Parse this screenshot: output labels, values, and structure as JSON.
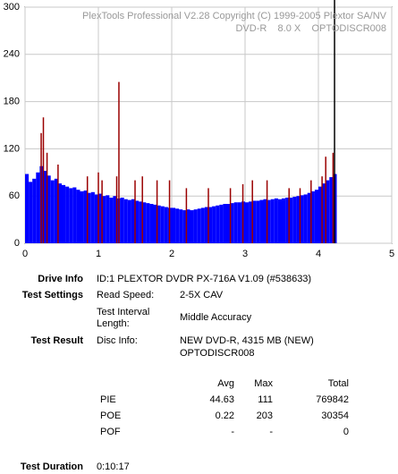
{
  "chart_data": {
    "type": "bar",
    "title": "PlexTools Professional V2.28 Copyright (C) 1999-2005 Plextor SA/NV",
    "subtitle": "DVD-R    8.0 X    OPTODISCR008",
    "x": [
      0,
      0.05,
      0.1,
      0.15,
      0.2,
      0.25,
      0.3,
      0.35,
      0.4,
      0.45,
      0.5,
      0.55,
      0.6,
      0.65,
      0.7,
      0.75,
      0.8,
      0.85,
      0.9,
      0.95,
      1,
      1.05,
      1.1,
      1.15,
      1.2,
      1.25,
      1.3,
      1.35,
      1.4,
      1.45,
      1.5,
      1.55,
      1.6,
      1.65,
      1.7,
      1.75,
      1.8,
      1.85,
      1.9,
      1.95,
      2,
      2.05,
      2.1,
      2.15,
      2.2,
      2.25,
      2.3,
      2.35,
      2.4,
      2.45,
      2.5,
      2.55,
      2.6,
      2.65,
      2.7,
      2.75,
      2.8,
      2.85,
      2.9,
      2.95,
      3,
      3.05,
      3.1,
      3.15,
      3.2,
      3.25,
      3.3,
      3.35,
      3.4,
      3.45,
      3.5,
      3.55,
      3.6,
      3.65,
      3.7,
      3.75,
      3.8,
      3.85,
      3.9,
      3.95,
      4,
      4.05,
      4.1,
      4.15,
      4.2
    ],
    "values": [
      88,
      78,
      82,
      90,
      98,
      92,
      86,
      80,
      82,
      76,
      74,
      72,
      70,
      71,
      68,
      66,
      67,
      64,
      65,
      62,
      63,
      60,
      61,
      58,
      60,
      57,
      58,
      56,
      55,
      56,
      54,
      53,
      52,
      51,
      50,
      49,
      48,
      47,
      46,
      45,
      45,
      44,
      43,
      42,
      43,
      42,
      43,
      44,
      45,
      46,
      46,
      47,
      48,
      49,
      50,
      50,
      51,
      52,
      52,
      53,
      52,
      53,
      54,
      54,
      55,
      56,
      55,
      56,
      57,
      56,
      57,
      58,
      58,
      59,
      60,
      61,
      62,
      64,
      66,
      68,
      72,
      76,
      80,
      84,
      88
    ],
    "color": "#0000ff",
    "spikes": {
      "color": "#9a0000",
      "x": [
        0.22,
        0.25,
        0.3,
        0.45,
        0.85,
        1.0,
        1.05,
        1.25,
        1.28,
        1.5,
        1.6,
        1.8,
        1.97,
        2.2,
        2.5,
        2.8,
        2.97,
        3.1,
        3.3,
        3.6,
        3.75,
        3.9,
        4.05,
        4.1,
        4.2
      ],
      "values": [
        140,
        160,
        115,
        100,
        85,
        90,
        80,
        85,
        205,
        80,
        85,
        80,
        80,
        70,
        70,
        70,
        75,
        80,
        80,
        70,
        70,
        80,
        85,
        110,
        115
      ]
    },
    "cursor_x": 4.22,
    "xlim": [
      0,
      5
    ],
    "xticks": [
      0,
      1,
      2,
      3,
      4,
      5
    ],
    "ylim": [
      0,
      300
    ],
    "yticks": [
      0,
      60,
      120,
      180,
      240,
      300
    ],
    "grid": true
  },
  "info": {
    "drive": {
      "label": "Drive Info",
      "value": "ID:1 PLEXTOR DVDR PX-716A V1.09 (#538633)"
    },
    "settings": {
      "label": "Test Settings",
      "rows": [
        [
          "Read Speed:",
          "2-5X CAV"
        ],
        [
          "Test Interval Length:",
          "Middle Accuracy"
        ]
      ]
    },
    "result": {
      "label": "Test Result",
      "key": "Disc Info:",
      "lines": [
        "NEW DVD-R, 4315 MB (NEW)",
        "OPTODISCR008"
      ]
    },
    "duration": {
      "label": "Test Duration",
      "value": "0:10:17"
    }
  },
  "results": {
    "headers": [
      "Avg",
      "Max",
      "Total"
    ],
    "rows": [
      {
        "label": "PIE",
        "values": [
          44.63,
          111,
          769842
        ]
      },
      {
        "label": "POE",
        "values": [
          0.22,
          203,
          30354
        ]
      },
      {
        "label": "POF",
        "values": [
          "-",
          "-",
          0
        ]
      }
    ]
  }
}
